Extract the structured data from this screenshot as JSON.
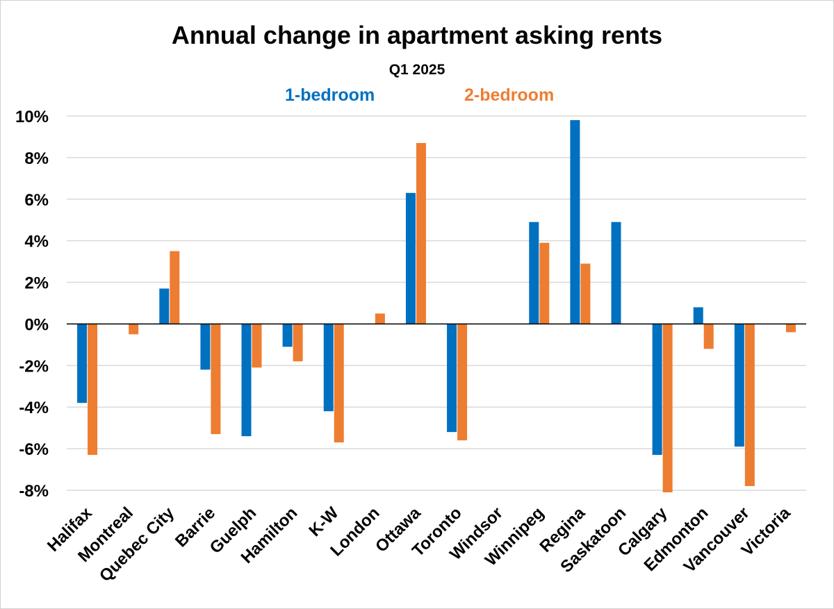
{
  "chart_data": {
    "type": "bar",
    "title": "Annual change in apartment asking rents",
    "subtitle": "Q1 2025",
    "xlabel": "",
    "ylabel": "",
    "ylim": [
      -8,
      10
    ],
    "yticks": [
      "10%",
      "8%",
      "6%",
      "4%",
      "2%",
      "0%",
      "-2%",
      "-4%",
      "-6%",
      "-8%"
    ],
    "grid": true,
    "legend_position": "top-center",
    "categories": [
      "Halifax",
      "Montreal",
      "Quebec City",
      "Barrie",
      "Guelph",
      "Hamilton",
      "K-W",
      "London",
      "Ottawa",
      "Toronto",
      "Windsor",
      "Winnipeg",
      "Regina",
      "Saskatoon",
      "Calgary",
      "Edmonton",
      "Vancouver",
      "Victoria"
    ],
    "series": [
      {
        "name": "1-bedroom",
        "color": "#0070C0",
        "values": [
          -3.8,
          null,
          1.7,
          -2.2,
          -5.4,
          -1.1,
          -4.2,
          null,
          6.3,
          -5.2,
          null,
          4.9,
          9.8,
          4.9,
          -6.3,
          0.8,
          -5.9,
          null
        ]
      },
      {
        "name": "2-bedroom",
        "color": "#ED7D31",
        "values": [
          -6.3,
          -0.5,
          3.5,
          -5.3,
          -2.1,
          -1.8,
          -5.7,
          0.5,
          8.7,
          -5.6,
          null,
          3.9,
          2.9,
          null,
          -8.1,
          -1.2,
          -7.8,
          -0.4
        ]
      }
    ]
  }
}
